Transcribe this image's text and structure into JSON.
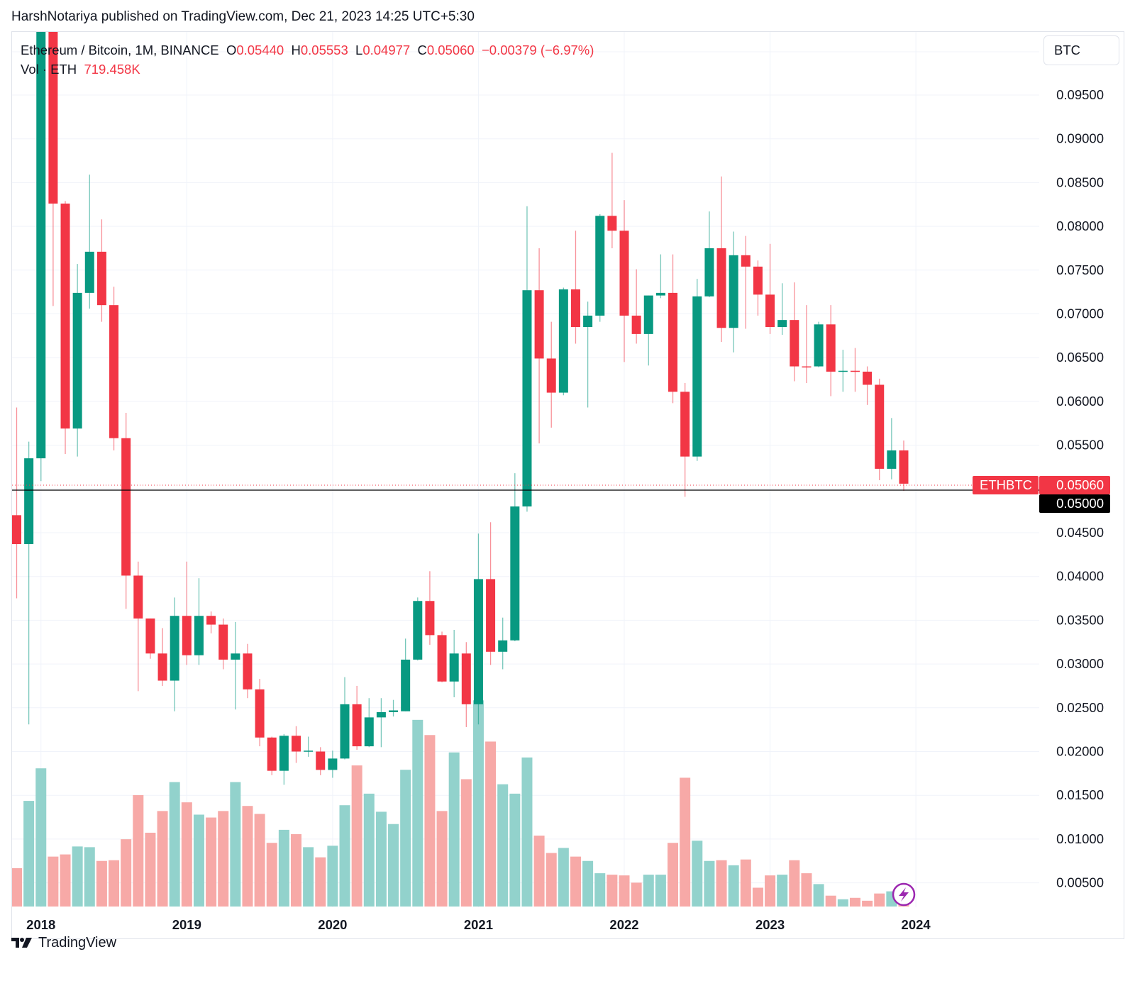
{
  "header": {
    "published": "HarshNotariya published on TradingView.com, Dec 21, 2023 14:25 UTC+5:30"
  },
  "legend": {
    "symbol": "Ethereum / Bitcoin, 1M, BINANCE",
    "o_label": "O",
    "o_value": "0.05440",
    "h_label": "H",
    "h_value": "0.05553",
    "l_label": "L",
    "l_value": "0.04977",
    "c_label": "C",
    "c_value": "0.05060",
    "change": "−0.00379 (−6.97%)",
    "vol_label": "Vol · ETH",
    "vol_value": "719.458K"
  },
  "currency_button": "BTC",
  "price_tags": {
    "symbol": "ETHBTC",
    "last": "0.05060",
    "crosshair": "0.05000"
  },
  "branding": {
    "name": "TradingView"
  },
  "colors": {
    "up": "#089981",
    "down": "#f23645",
    "vol_up": "#92d2cc",
    "vol_down": "#f7a9a7",
    "accent": "#9c27b0"
  },
  "chart_data": {
    "type": "candlestick",
    "title": "Ethereum / Bitcoin, 1M, BINANCE",
    "interval": "1M",
    "ylabel": "BTC",
    "ylim": [
      0.0,
      0.1021
    ],
    "y_ticks": [
      "0.09500",
      "0.09000",
      "0.08500",
      "0.08000",
      "0.07500",
      "0.07000",
      "0.06500",
      "0.06000",
      "0.05500",
      "0.04500",
      "0.04000",
      "0.03500",
      "0.03000",
      "0.02500",
      "0.02000",
      "0.01500",
      "0.01000",
      "0.00500"
    ],
    "x_ticks": [
      {
        "label": "2018",
        "index": 2
      },
      {
        "label": "2019",
        "index": 14
      },
      {
        "label": "2020",
        "index": 26
      },
      {
        "label": "2021",
        "index": 38
      },
      {
        "label": "2022",
        "index": 50
      },
      {
        "label": "2023",
        "index": 62
      },
      {
        "label": "2024",
        "index": 74
      }
    ],
    "grid": true,
    "candle_fields": [
      "open",
      "high",
      "low",
      "close",
      "volume_k_eth"
    ],
    "candles": [
      [
        0.047,
        0.0593,
        0.0375,
        0.0437,
        12720
      ],
      [
        0.0437,
        0.0554,
        0.0231,
        0.0535,
        35040
      ],
      [
        0.0535,
        0.11,
        0.0509,
        0.104,
        45840
      ],
      [
        0.104,
        0.11,
        0.0709,
        0.0826,
        16560
      ],
      [
        0.0826,
        0.0829,
        0.054,
        0.0569,
        17280
      ],
      [
        0.0569,
        0.0757,
        0.0537,
        0.0724,
        19920
      ],
      [
        0.0724,
        0.0859,
        0.0706,
        0.0771,
        19680
      ],
      [
        0.0771,
        0.0808,
        0.0691,
        0.071,
        15120
      ],
      [
        0.071,
        0.0731,
        0.0544,
        0.0558,
        15360
      ],
      [
        0.0558,
        0.0587,
        0.0363,
        0.0401,
        22320
      ],
      [
        0.0401,
        0.0417,
        0.0269,
        0.0352,
        36960
      ],
      [
        0.0352,
        0.0352,
        0.0306,
        0.0312,
        24480
      ],
      [
        0.0312,
        0.0341,
        0.0275,
        0.0281,
        31680
      ],
      [
        0.0281,
        0.0376,
        0.0246,
        0.0355,
        41280
      ],
      [
        0.0355,
        0.0417,
        0.0299,
        0.031,
        34560
      ],
      [
        0.031,
        0.0398,
        0.0299,
        0.0355,
        30480
      ],
      [
        0.0355,
        0.036,
        0.0335,
        0.0345,
        29520
      ],
      [
        0.0345,
        0.0352,
        0.0294,
        0.0305,
        31680
      ],
      [
        0.0305,
        0.0348,
        0.0248,
        0.0312,
        41280
      ],
      [
        0.0312,
        0.0323,
        0.0261,
        0.0271,
        33360
      ],
      [
        0.0271,
        0.0283,
        0.0206,
        0.0216,
        30720
      ],
      [
        0.0216,
        0.0217,
        0.0173,
        0.0178,
        21120
      ],
      [
        0.0178,
        0.022,
        0.0162,
        0.0218,
        25440
      ],
      [
        0.0218,
        0.0229,
        0.0187,
        0.02,
        24000
      ],
      [
        0.02,
        0.0217,
        0.0194,
        0.0201,
        19680
      ],
      [
        0.02,
        0.0205,
        0.0173,
        0.0179,
        16320
      ],
      [
        0.0179,
        0.0201,
        0.017,
        0.0192,
        20160
      ],
      [
        0.0192,
        0.0285,
        0.0191,
        0.0254,
        33600
      ],
      [
        0.0254,
        0.0275,
        0.0202,
        0.0206,
        46800
      ],
      [
        0.0206,
        0.0261,
        0.0205,
        0.0239,
        37440
      ],
      [
        0.0239,
        0.0261,
        0.0205,
        0.0245,
        31440
      ],
      [
        0.0245,
        0.0259,
        0.024,
        0.0247,
        27360
      ],
      [
        0.0246,
        0.0329,
        0.0246,
        0.0305,
        45360
      ],
      [
        0.0305,
        0.0376,
        0.0304,
        0.0372,
        61920
      ],
      [
        0.0372,
        0.0406,
        0.0322,
        0.0333,
        56880
      ],
      [
        0.0333,
        0.0337,
        0.0279,
        0.028,
        31680
      ],
      [
        0.028,
        0.0339,
        0.0262,
        0.0312,
        51120
      ],
      [
        0.0312,
        0.0325,
        0.0228,
        0.0254,
        42240
      ],
      [
        0.0254,
        0.0449,
        0.0231,
        0.0397,
        68400
      ],
      [
        0.0397,
        0.0462,
        0.0299,
        0.0314,
        54720
      ],
      [
        0.0314,
        0.0353,
        0.0294,
        0.0327,
        40560
      ],
      [
        0.0327,
        0.0518,
        0.0326,
        0.048,
        37440
      ],
      [
        0.048,
        0.0823,
        0.0474,
        0.0727,
        49440
      ],
      [
        0.0727,
        0.0775,
        0.0552,
        0.0649,
        23520
      ],
      [
        0.0649,
        0.0691,
        0.057,
        0.061,
        17760
      ],
      [
        0.061,
        0.073,
        0.0607,
        0.0728,
        19440
      ],
      [
        0.0728,
        0.0795,
        0.0666,
        0.0685,
        16560
      ],
      [
        0.0685,
        0.0714,
        0.0593,
        0.0698,
        15120
      ],
      [
        0.0698,
        0.0814,
        0.0691,
        0.0812,
        11040
      ],
      [
        0.0812,
        0.0884,
        0.0775,
        0.0795,
        10560
      ],
      [
        0.0795,
        0.083,
        0.0645,
        0.0698,
        10320
      ],
      [
        0.0698,
        0.0751,
        0.0666,
        0.0677,
        7920
      ],
      [
        0.0677,
        0.0721,
        0.0641,
        0.0721,
        10560
      ],
      [
        0.0721,
        0.0768,
        0.0718,
        0.0724,
        10560
      ],
      [
        0.0724,
        0.0768,
        0.0598,
        0.0611,
        21120
      ],
      [
        0.0611,
        0.0621,
        0.0491,
        0.0537,
        42720
      ],
      [
        0.0537,
        0.074,
        0.0532,
        0.072,
        21840
      ],
      [
        0.072,
        0.0817,
        0.0719,
        0.0775,
        15120
      ],
      [
        0.0775,
        0.0857,
        0.0668,
        0.0684,
        15360
      ],
      [
        0.0684,
        0.0794,
        0.0656,
        0.0767,
        13680
      ],
      [
        0.0767,
        0.0789,
        0.0683,
        0.0754,
        15600
      ],
      [
        0.0754,
        0.0761,
        0.0698,
        0.0722,
        6240
      ],
      [
        0.0722,
        0.078,
        0.0677,
        0.0685,
        10320
      ],
      [
        0.0685,
        0.0735,
        0.0676,
        0.0693,
        10560
      ],
      [
        0.0693,
        0.0736,
        0.0623,
        0.064,
        15360
      ],
      [
        0.064,
        0.071,
        0.0621,
        0.0639,
        11040
      ],
      [
        0.064,
        0.0691,
        0.0639,
        0.0688,
        7440
      ],
      [
        0.0688,
        0.071,
        0.0606,
        0.0634,
        3600
      ],
      [
        0.0634,
        0.0659,
        0.0611,
        0.0635,
        2400
      ],
      [
        0.0635,
        0.0661,
        0.0611,
        0.0634,
        2880
      ],
      [
        0.0634,
        0.064,
        0.0596,
        0.0619,
        1920
      ],
      [
        0.0619,
        0.0626,
        0.051,
        0.0523,
        4320
      ],
      [
        0.0523,
        0.0581,
        0.0511,
        0.0544,
        5040
      ],
      [
        0.0544,
        0.05553,
        0.04977,
        0.0506,
        719.458
      ]
    ],
    "last_price": 0.0506,
    "crosshair_price": 0.05
  }
}
